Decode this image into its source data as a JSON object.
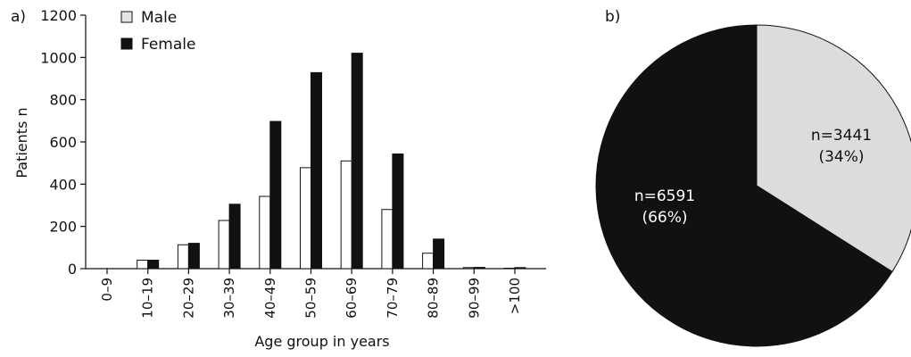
{
  "chart_data": [
    {
      "type": "bar",
      "panel_label": "a)",
      "categories": [
        "0–9",
        "10–19",
        "20–29",
        "30–39",
        "40–49",
        "50–59",
        "60–69",
        "70–79",
        "80–89",
        "90–99",
        ">100"
      ],
      "series": [
        {
          "name": "Male",
          "color": "#ffffff",
          "values": [
            0,
            40,
            113,
            228,
            342,
            478,
            510,
            280,
            73,
            5,
            2
          ]
        },
        {
          "name": "Female",
          "color": "#111111",
          "values": [
            0,
            40,
            120,
            305,
            697,
            928,
            1020,
            543,
            140,
            6,
            5
          ]
        }
      ],
      "xlabel": "Age group in years",
      "ylabel": "Patients n",
      "ylim": [
        0,
        1200
      ],
      "yticks": [
        0,
        200,
        400,
        600,
        800,
        1000,
        1200
      ],
      "grid": false,
      "legend": "top-left"
    },
    {
      "type": "pie",
      "panel_label": "b)",
      "slices": [
        {
          "line1": "n=3441",
          "line2": "(34%)",
          "value": 34,
          "color": "#dcdcdc"
        },
        {
          "line1": "n=6591",
          "line2": "(66%)",
          "value": 66,
          "color": "#111111"
        }
      ]
    }
  ]
}
